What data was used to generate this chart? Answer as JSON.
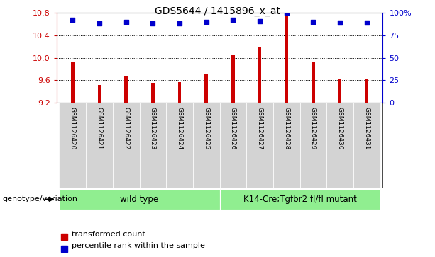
{
  "title": "GDS5644 / 1415896_x_at",
  "samples": [
    "GSM1126420",
    "GSM1126421",
    "GSM1126422",
    "GSM1126423",
    "GSM1126424",
    "GSM1126425",
    "GSM1126426",
    "GSM1126427",
    "GSM1126428",
    "GSM1126429",
    "GSM1126430",
    "GSM1126431"
  ],
  "transformed_counts": [
    9.93,
    9.52,
    9.67,
    9.56,
    9.57,
    9.72,
    10.05,
    10.2,
    10.78,
    9.93,
    9.63,
    9.63
  ],
  "percentile_ranks": [
    92,
    88,
    90,
    88,
    88,
    90,
    92,
    91,
    100,
    90,
    89,
    89
  ],
  "ylim_left": [
    9.2,
    10.8
  ],
  "ylim_right": [
    0,
    100
  ],
  "yticks_left": [
    9.2,
    9.6,
    10.0,
    10.4,
    10.8
  ],
  "yticks_right": [
    0,
    25,
    50,
    75,
    100
  ],
  "bar_color": "#cc0000",
  "dot_color": "#0000cc",
  "bar_bottom": 9.2,
  "wt_count": 6,
  "mut_count": 6,
  "wt_label": "wild type",
  "mut_label": "K14-Cre;Tgfbr2 fl/fl mutant",
  "group_row_label": "genotype/variation",
  "legend_items": [
    {
      "color": "#cc0000",
      "label": "transformed count"
    },
    {
      "color": "#0000cc",
      "label": "percentile rank within the sample"
    }
  ],
  "plot_bg_color": "#ffffff",
  "sample_label_bg": "#d3d3d3",
  "group_bg": "#90ee90",
  "grid_color": "#000000",
  "left_axis_color": "#cc0000",
  "right_axis_color": "#0000cc",
  "bar_width": 0.12
}
